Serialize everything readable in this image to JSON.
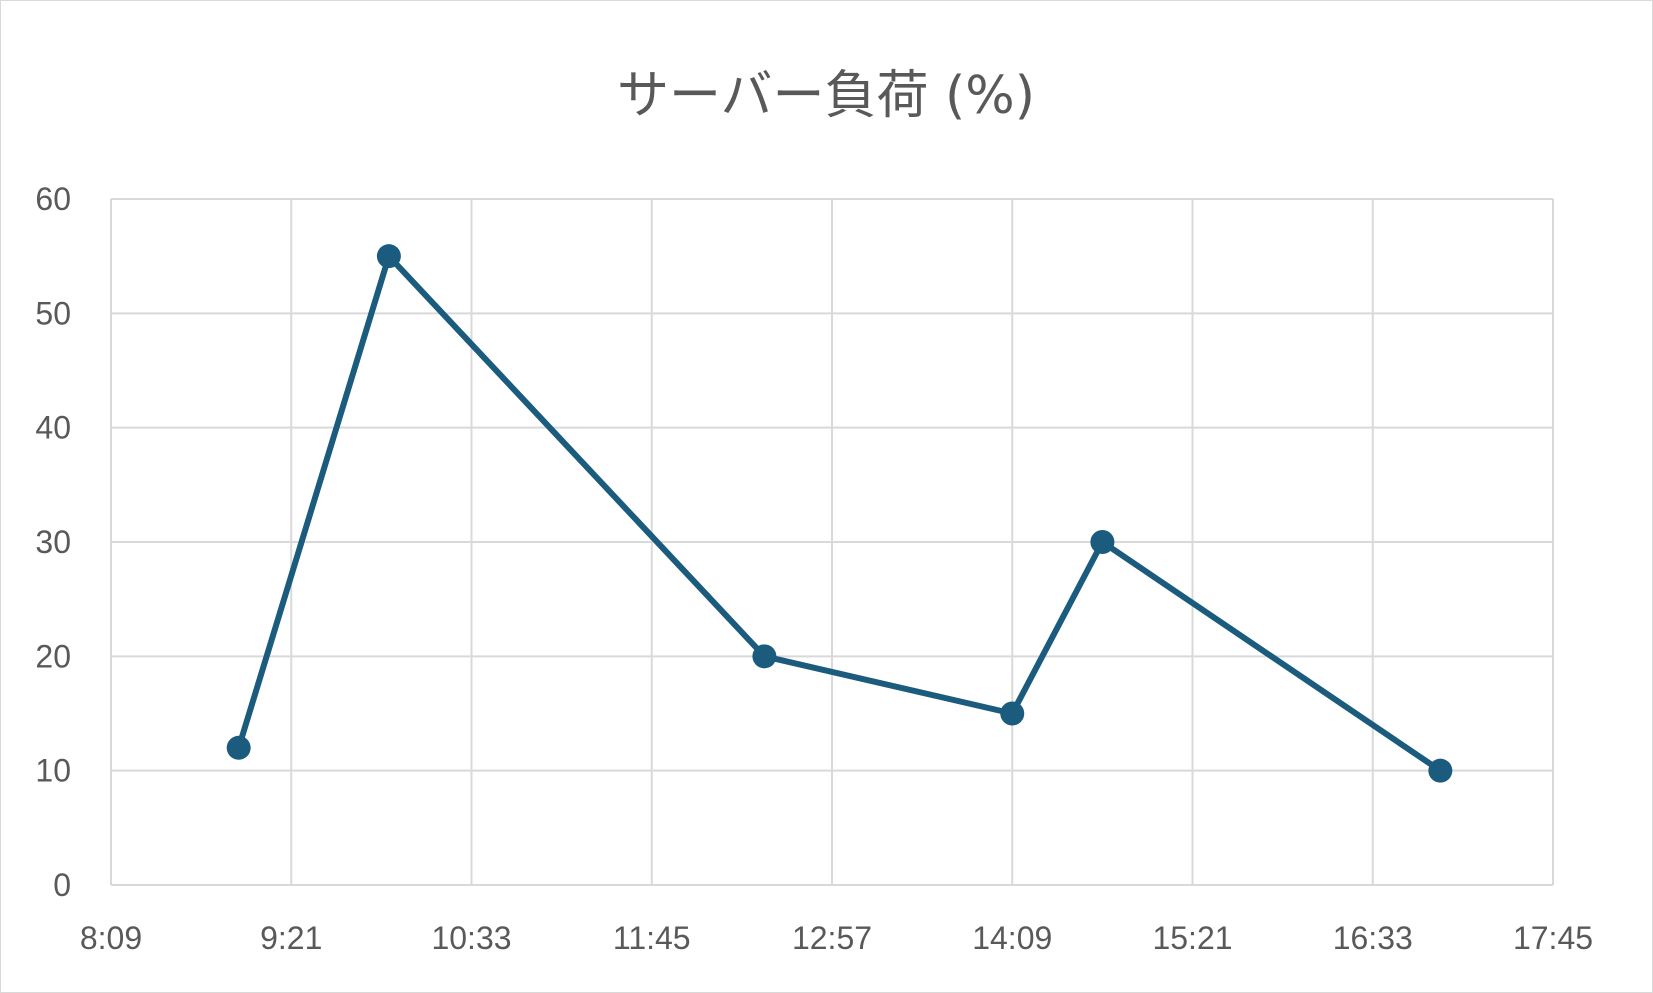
{
  "chart_data": {
    "type": "line",
    "title": "サーバー負荷 (%)",
    "xlabel": "",
    "ylabel": "",
    "x_ticks": [
      "8:09",
      "9:21",
      "10:33",
      "11:45",
      "12:57",
      "14:09",
      "15:21",
      "16:33",
      "17:45"
    ],
    "y_ticks": [
      "0",
      "10",
      "20",
      "30",
      "40",
      "50",
      "60"
    ],
    "xlim": [
      "8:09",
      "17:45"
    ],
    "ylim": [
      0,
      60
    ],
    "grid": true,
    "legend": "none",
    "series": [
      {
        "color": "#1b5c7e",
        "points": [
          {
            "x": "9:00",
            "y": 12
          },
          {
            "x": "10:00",
            "y": 55
          },
          {
            "x": "12:30",
            "y": 20
          },
          {
            "x": "14:09",
            "y": 15
          },
          {
            "x": "14:45",
            "y": 30
          },
          {
            "x": "17:00",
            "y": 10
          }
        ]
      }
    ]
  }
}
